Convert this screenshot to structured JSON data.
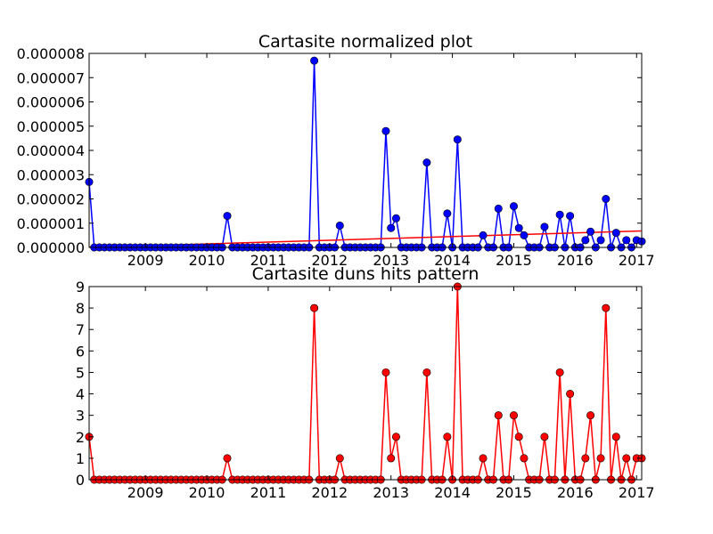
{
  "chart_data": [
    {
      "type": "line",
      "title": "Cartasite normalized plot",
      "xlabel": "",
      "ylabel": "",
      "x_axis": "date (monthly)",
      "x_ticks": [
        "2009",
        "2010",
        "2011",
        "2012",
        "2013",
        "2014",
        "2015",
        "2016",
        "2017"
      ],
      "y_ticks": [
        "0.000000",
        "0.000001",
        "0.000002",
        "0.000003",
        "0.000004",
        "0.000005",
        "0.000006",
        "0.000007",
        "0.000008"
      ],
      "ylim": [
        0,
        8e-06
      ],
      "xlim": [
        "2008-02",
        "2017-02"
      ],
      "grid": false,
      "series": [
        {
          "color": "#0000ff",
          "marker": "circle",
          "points": [
            [
              "2008-02",
              2.7e-06
            ],
            [
              "2008-03",
              0
            ],
            [
              "2008-04",
              0
            ],
            [
              "2008-05",
              0
            ],
            [
              "2008-06",
              0
            ],
            [
              "2008-07",
              0
            ],
            [
              "2008-08",
              0
            ],
            [
              "2008-09",
              0
            ],
            [
              "2008-10",
              0
            ],
            [
              "2008-11",
              0
            ],
            [
              "2008-12",
              0
            ],
            [
              "2009-01",
              0
            ],
            [
              "2009-02",
              0
            ],
            [
              "2009-03",
              0
            ],
            [
              "2009-04",
              0
            ],
            [
              "2009-05",
              0
            ],
            [
              "2009-06",
              0
            ],
            [
              "2009-07",
              0
            ],
            [
              "2009-08",
              0
            ],
            [
              "2009-09",
              0
            ],
            [
              "2009-10",
              0
            ],
            [
              "2009-11",
              0
            ],
            [
              "2009-12",
              0
            ],
            [
              "2010-01",
              0
            ],
            [
              "2010-02",
              0
            ],
            [
              "2010-03",
              0
            ],
            [
              "2010-04",
              0
            ],
            [
              "2010-05",
              1.3e-06
            ],
            [
              "2010-06",
              0
            ],
            [
              "2010-07",
              0
            ],
            [
              "2010-08",
              0
            ],
            [
              "2010-09",
              0
            ],
            [
              "2010-10",
              0
            ],
            [
              "2010-11",
              0
            ],
            [
              "2010-12",
              0
            ],
            [
              "2011-01",
              0
            ],
            [
              "2011-02",
              0
            ],
            [
              "2011-03",
              0
            ],
            [
              "2011-04",
              0
            ],
            [
              "2011-05",
              0
            ],
            [
              "2011-06",
              0
            ],
            [
              "2011-07",
              0
            ],
            [
              "2011-08",
              0
            ],
            [
              "2011-09",
              0
            ],
            [
              "2011-10",
              7.7e-06
            ],
            [
              "2011-11",
              0
            ],
            [
              "2011-12",
              0
            ],
            [
              "2012-01",
              0
            ],
            [
              "2012-02",
              0
            ],
            [
              "2012-03",
              9e-07
            ],
            [
              "2012-04",
              0
            ],
            [
              "2012-05",
              0
            ],
            [
              "2012-06",
              0
            ],
            [
              "2012-07",
              0
            ],
            [
              "2012-08",
              0
            ],
            [
              "2012-09",
              0
            ],
            [
              "2012-10",
              0
            ],
            [
              "2012-11",
              0
            ],
            [
              "2012-12",
              4.8e-06
            ],
            [
              "2013-01",
              8e-07
            ],
            [
              "2013-02",
              1.2e-06
            ],
            [
              "2013-03",
              0
            ],
            [
              "2013-04",
              0
            ],
            [
              "2013-05",
              0
            ],
            [
              "2013-06",
              0
            ],
            [
              "2013-07",
              0
            ],
            [
              "2013-08",
              3.5e-06
            ],
            [
              "2013-09",
              0
            ],
            [
              "2013-10",
              0
            ],
            [
              "2013-11",
              0
            ],
            [
              "2013-12",
              1.4e-06
            ],
            [
              "2014-01",
              0
            ],
            [
              "2014-02",
              4.45e-06
            ],
            [
              "2014-03",
              0
            ],
            [
              "2014-04",
              0
            ],
            [
              "2014-05",
              0
            ],
            [
              "2014-06",
              0
            ],
            [
              "2014-07",
              5e-07
            ],
            [
              "2014-08",
              0
            ],
            [
              "2014-09",
              0
            ],
            [
              "2014-10",
              1.6e-06
            ],
            [
              "2014-11",
              0
            ],
            [
              "2014-12",
              0
            ],
            [
              "2015-01",
              1.7e-06
            ],
            [
              "2015-02",
              8e-07
            ],
            [
              "2015-03",
              5e-07
            ],
            [
              "2015-04",
              0
            ],
            [
              "2015-05",
              0
            ],
            [
              "2015-06",
              0
            ],
            [
              "2015-07",
              8.5e-07
            ],
            [
              "2015-08",
              0
            ],
            [
              "2015-09",
              0
            ],
            [
              "2015-10",
              1.35e-06
            ],
            [
              "2015-11",
              0
            ],
            [
              "2015-12",
              1.3e-06
            ],
            [
              "2016-01",
              0
            ],
            [
              "2016-02",
              0
            ],
            [
              "2016-03",
              3e-07
            ],
            [
              "2016-04",
              6.5e-07
            ],
            [
              "2016-05",
              0
            ],
            [
              "2016-06",
              3e-07
            ],
            [
              "2016-07",
              2e-06
            ],
            [
              "2016-08",
              0
            ],
            [
              "2016-09",
              6e-07
            ],
            [
              "2016-10",
              0
            ],
            [
              "2016-11",
              3e-07
            ],
            [
              "2016-12",
              0
            ],
            [
              "2017-01",
              3e-07
            ],
            [
              "2017-02",
              2.5e-07
            ]
          ]
        },
        {
          "type": "trend-line",
          "color": "#ff0000",
          "marker": "none",
          "points": [
            [
              "2008-02",
              0
            ],
            [
              "2017-02",
              6.8e-07
            ]
          ]
        }
      ]
    },
    {
      "type": "line",
      "title": "Cartasite duns hits pattern",
      "xlabel": "",
      "ylabel": "",
      "x_axis": "date (monthly)",
      "x_ticks": [
        "2009",
        "2010",
        "2011",
        "2012",
        "2013",
        "2014",
        "2015",
        "2016",
        "2017"
      ],
      "y_ticks": [
        "0",
        "1",
        "2",
        "3",
        "4",
        "5",
        "6",
        "7",
        "8",
        "9"
      ],
      "ylim": [
        0,
        9
      ],
      "xlim": [
        "2008-02",
        "2017-02"
      ],
      "grid": false,
      "series": [
        {
          "color": "#ff0000",
          "marker": "circle",
          "points": [
            [
              "2008-02",
              2
            ],
            [
              "2008-03",
              0
            ],
            [
              "2008-04",
              0
            ],
            [
              "2008-05",
              0
            ],
            [
              "2008-06",
              0
            ],
            [
              "2008-07",
              0
            ],
            [
              "2008-08",
              0
            ],
            [
              "2008-09",
              0
            ],
            [
              "2008-10",
              0
            ],
            [
              "2008-11",
              0
            ],
            [
              "2008-12",
              0
            ],
            [
              "2009-01",
              0
            ],
            [
              "2009-02",
              0
            ],
            [
              "2009-03",
              0
            ],
            [
              "2009-04",
              0
            ],
            [
              "2009-05",
              0
            ],
            [
              "2009-06",
              0
            ],
            [
              "2009-07",
              0
            ],
            [
              "2009-08",
              0
            ],
            [
              "2009-09",
              0
            ],
            [
              "2009-10",
              0
            ],
            [
              "2009-11",
              0
            ],
            [
              "2009-12",
              0
            ],
            [
              "2010-01",
              0
            ],
            [
              "2010-02",
              0
            ],
            [
              "2010-03",
              0
            ],
            [
              "2010-04",
              0
            ],
            [
              "2010-05",
              1
            ],
            [
              "2010-06",
              0
            ],
            [
              "2010-07",
              0
            ],
            [
              "2010-08",
              0
            ],
            [
              "2010-09",
              0
            ],
            [
              "2010-10",
              0
            ],
            [
              "2010-11",
              0
            ],
            [
              "2010-12",
              0
            ],
            [
              "2011-01",
              0
            ],
            [
              "2011-02",
              0
            ],
            [
              "2011-03",
              0
            ],
            [
              "2011-04",
              0
            ],
            [
              "2011-05",
              0
            ],
            [
              "2011-06",
              0
            ],
            [
              "2011-07",
              0
            ],
            [
              "2011-08",
              0
            ],
            [
              "2011-09",
              0
            ],
            [
              "2011-10",
              8
            ],
            [
              "2011-11",
              0
            ],
            [
              "2011-12",
              0
            ],
            [
              "2012-01",
              0
            ],
            [
              "2012-02",
              0
            ],
            [
              "2012-03",
              1
            ],
            [
              "2012-04",
              0
            ],
            [
              "2012-05",
              0
            ],
            [
              "2012-06",
              0
            ],
            [
              "2012-07",
              0
            ],
            [
              "2012-08",
              0
            ],
            [
              "2012-09",
              0
            ],
            [
              "2012-10",
              0
            ],
            [
              "2012-11",
              0
            ],
            [
              "2012-12",
              5
            ],
            [
              "2013-01",
              1
            ],
            [
              "2013-02",
              2
            ],
            [
              "2013-03",
              0
            ],
            [
              "2013-04",
              0
            ],
            [
              "2013-05",
              0
            ],
            [
              "2013-06",
              0
            ],
            [
              "2013-07",
              0
            ],
            [
              "2013-08",
              5
            ],
            [
              "2013-09",
              0
            ],
            [
              "2013-10",
              0
            ],
            [
              "2013-11",
              0
            ],
            [
              "2013-12",
              2
            ],
            [
              "2014-01",
              0
            ],
            [
              "2014-02",
              9
            ],
            [
              "2014-03",
              0
            ],
            [
              "2014-04",
              0
            ],
            [
              "2014-05",
              0
            ],
            [
              "2014-06",
              0
            ],
            [
              "2014-07",
              1
            ],
            [
              "2014-08",
              0
            ],
            [
              "2014-09",
              0
            ],
            [
              "2014-10",
              3
            ],
            [
              "2014-11",
              0
            ],
            [
              "2014-12",
              0
            ],
            [
              "2015-01",
              3
            ],
            [
              "2015-02",
              2
            ],
            [
              "2015-03",
              1
            ],
            [
              "2015-04",
              0
            ],
            [
              "2015-05",
              0
            ],
            [
              "2015-06",
              0
            ],
            [
              "2015-07",
              2
            ],
            [
              "2015-08",
              0
            ],
            [
              "2015-09",
              0
            ],
            [
              "2015-10",
              5
            ],
            [
              "2015-11",
              0
            ],
            [
              "2015-12",
              4
            ],
            [
              "2016-01",
              0
            ],
            [
              "2016-02",
              0
            ],
            [
              "2016-03",
              1
            ],
            [
              "2016-04",
              3
            ],
            [
              "2016-05",
              0
            ],
            [
              "2016-06",
              1
            ],
            [
              "2016-07",
              8
            ],
            [
              "2016-08",
              0
            ],
            [
              "2016-09",
              2
            ],
            [
              "2016-10",
              0
            ],
            [
              "2016-11",
              1
            ],
            [
              "2016-12",
              0
            ],
            [
              "2017-01",
              1
            ],
            [
              "2017-02",
              1
            ]
          ]
        }
      ]
    }
  ]
}
